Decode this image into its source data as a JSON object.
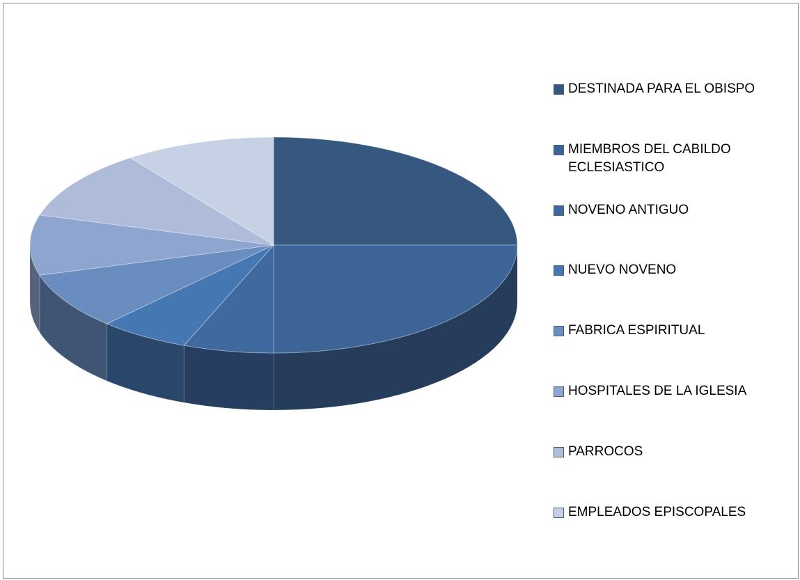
{
  "chart_data": {
    "type": "pie3d",
    "categories": [
      "DESTINADA PARA EL OBISPO",
      "MIEMBROS DEL CABILDO ECLESIASTICO",
      "NOVENO ANTIGUO",
      "NUEVO NOVENO",
      "FABRICA ESPIRITUAL",
      "HOSPITALES DE LA IGLESIA",
      "PARROCOS",
      "EMPLEADOS EPISCOPALES"
    ],
    "values": [
      25,
      25,
      6,
      6,
      8.5,
      9,
      10.5,
      10
    ],
    "colors": [
      "#36587f",
      "#3d6496",
      "#4069a0",
      "#4577b3",
      "#6a8dc0",
      "#8ea6cf",
      "#aebcda",
      "#c7d1e6"
    ],
    "legend": "right"
  }
}
